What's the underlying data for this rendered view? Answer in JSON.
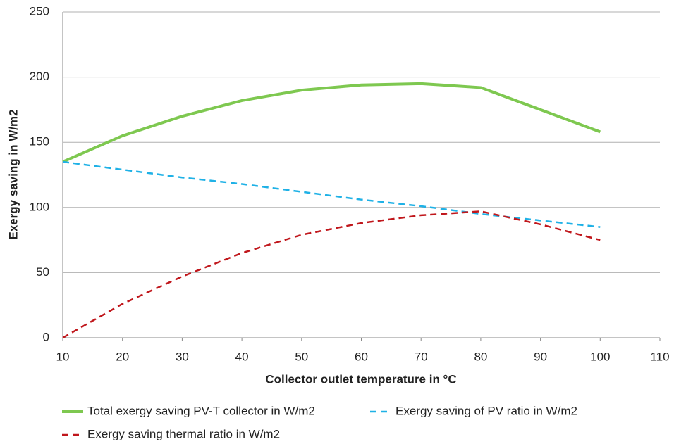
{
  "chart_data": {
    "type": "line",
    "x_label": "Collector outlet temperature in °C",
    "y_label": "Exergy saving in W/m2",
    "x": [
      10,
      20,
      30,
      40,
      50,
      60,
      70,
      80,
      90,
      100
    ],
    "series": [
      {
        "name": "Total exergy saving PV-T collector in W/m2",
        "color": "#7ec850",
        "style": "solid",
        "values": [
          135,
          155,
          170,
          182,
          190,
          194,
          195,
          192,
          175,
          158
        ]
      },
      {
        "name": "Exergy saving of PV ratio in W/m2",
        "color": "#1fb1e6",
        "style": "dashed",
        "values": [
          135,
          129,
          123,
          118,
          112,
          106,
          101,
          95,
          90,
          85
        ]
      },
      {
        "name": "Exergy saving thermal ratio in W/m2",
        "color": "#c0171c",
        "style": "dashed",
        "values": [
          0,
          26,
          47,
          65,
          79,
          88,
          94,
          97,
          87,
          75
        ]
      }
    ],
    "xlim": [
      10,
      110
    ],
    "xticks": [
      10,
      20,
      30,
      40,
      50,
      60,
      70,
      80,
      90,
      100,
      110
    ],
    "ylim": [
      0,
      250
    ],
    "yticks": [
      0,
      50,
      100,
      150,
      200,
      250
    ],
    "grid": true,
    "legend": "bottom"
  }
}
